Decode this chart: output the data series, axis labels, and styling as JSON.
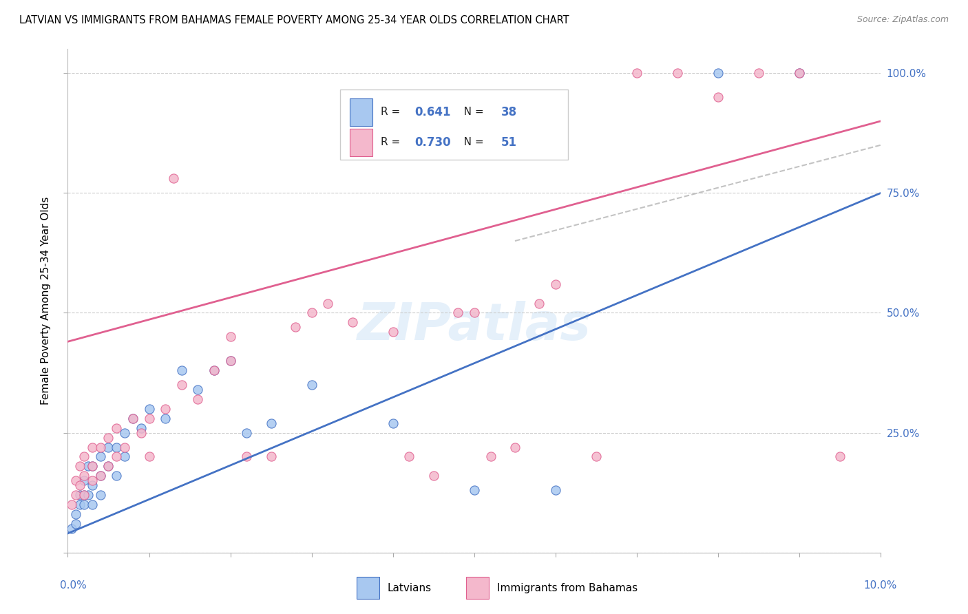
{
  "title": "LATVIAN VS IMMIGRANTS FROM BAHAMAS FEMALE POVERTY AMONG 25-34 YEAR OLDS CORRELATION CHART",
  "source": "Source: ZipAtlas.com",
  "ylabel": "Female Poverty Among 25-34 Year Olds",
  "xmin": 0.0,
  "xmax": 0.1,
  "ymin": 0.0,
  "ymax": 1.05,
  "watermark": "ZIPatlas",
  "color_latvian_fill": "#a8c8f0",
  "color_latvian_edge": "#4472c4",
  "color_bahamas_fill": "#f4b8cc",
  "color_bahamas_edge": "#e06090",
  "color_line_latvian": "#4472c4",
  "color_line_bahamas": "#e06090",
  "color_axis_blue": "#4472c4",
  "color_grid": "#cccccc",
  "color_dashed": "#aaaaaa",
  "blue_line_x0": 0.0,
  "blue_line_y0": 0.04,
  "blue_line_x1": 0.1,
  "blue_line_y1": 0.75,
  "pink_line_x0": 0.0,
  "pink_line_y0": 0.44,
  "pink_line_x1": 0.1,
  "pink_line_y1": 0.9,
  "dash_line_x0": 0.055,
  "dash_line_y0": 0.65,
  "dash_line_x1": 0.1,
  "dash_line_y1": 0.85,
  "latvian_x": [
    0.0005,
    0.001,
    0.001,
    0.0015,
    0.0015,
    0.002,
    0.002,
    0.002,
    0.0025,
    0.0025,
    0.003,
    0.003,
    0.003,
    0.004,
    0.004,
    0.004,
    0.005,
    0.005,
    0.006,
    0.006,
    0.007,
    0.007,
    0.008,
    0.009,
    0.01,
    0.012,
    0.014,
    0.016,
    0.018,
    0.02,
    0.022,
    0.025,
    0.03,
    0.04,
    0.05,
    0.06,
    0.08,
    0.09
  ],
  "latvian_y": [
    0.05,
    0.06,
    0.08,
    0.1,
    0.12,
    0.1,
    0.12,
    0.15,
    0.12,
    0.18,
    0.1,
    0.14,
    0.18,
    0.12,
    0.16,
    0.2,
    0.18,
    0.22,
    0.16,
    0.22,
    0.2,
    0.25,
    0.28,
    0.26,
    0.3,
    0.28,
    0.38,
    0.34,
    0.38,
    0.4,
    0.25,
    0.27,
    0.35,
    0.27,
    0.13,
    0.13,
    1.0,
    1.0
  ],
  "bahamas_x": [
    0.0005,
    0.001,
    0.001,
    0.0015,
    0.0015,
    0.002,
    0.002,
    0.002,
    0.003,
    0.003,
    0.003,
    0.004,
    0.004,
    0.005,
    0.005,
    0.006,
    0.006,
    0.007,
    0.008,
    0.009,
    0.01,
    0.01,
    0.012,
    0.013,
    0.014,
    0.016,
    0.018,
    0.02,
    0.022,
    0.025,
    0.028,
    0.03,
    0.032,
    0.035,
    0.04,
    0.042,
    0.045,
    0.048,
    0.05,
    0.052,
    0.055,
    0.058,
    0.06,
    0.065,
    0.07,
    0.075,
    0.08,
    0.085,
    0.09,
    0.095,
    0.02
  ],
  "bahamas_y": [
    0.1,
    0.12,
    0.15,
    0.14,
    0.18,
    0.12,
    0.16,
    0.2,
    0.15,
    0.18,
    0.22,
    0.16,
    0.22,
    0.18,
    0.24,
    0.2,
    0.26,
    0.22,
    0.28,
    0.25,
    0.2,
    0.28,
    0.3,
    0.78,
    0.35,
    0.32,
    0.38,
    0.4,
    0.2,
    0.2,
    0.47,
    0.5,
    0.52,
    0.48,
    0.46,
    0.2,
    0.16,
    0.5,
    0.5,
    0.2,
    0.22,
    0.52,
    0.56,
    0.2,
    1.0,
    1.0,
    0.95,
    1.0,
    1.0,
    0.2,
    0.45
  ]
}
